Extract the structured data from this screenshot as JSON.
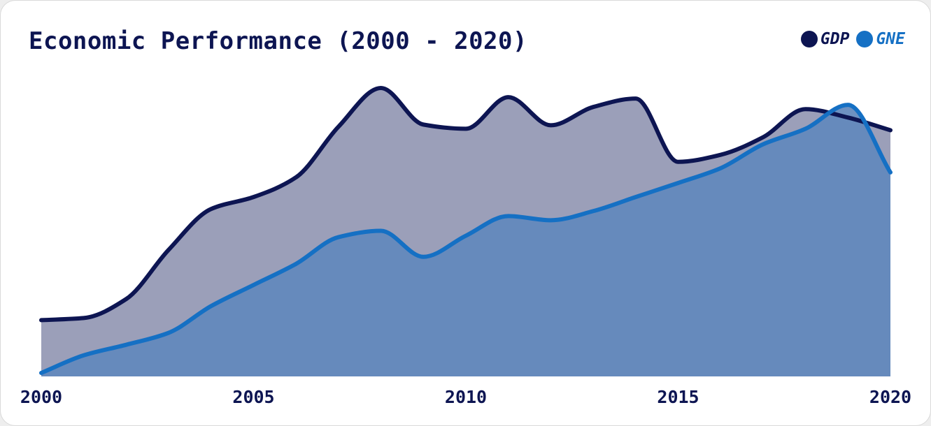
{
  "chart_data": {
    "type": "area",
    "title": "Economic Performance (2000 - 2020)",
    "x": [
      2000,
      2001,
      2002,
      2003,
      2004,
      2005,
      2006,
      2007,
      2008,
      2009,
      2010,
      2011,
      2012,
      2013,
      2014,
      2015,
      2016,
      2017,
      2018,
      2019,
      2020
    ],
    "x_ticks": [
      "2000",
      "2005",
      "2010",
      "2015",
      "2020"
    ],
    "ylim": [
      0,
      410
    ],
    "series": [
      {
        "name": "GDP",
        "color": "#0d1552",
        "fill": "#9b9fb9",
        "values": [
          80,
          83,
          110,
          180,
          238,
          255,
          283,
          355,
          410,
          358,
          352,
          397,
          357,
          383,
          395,
          305,
          315,
          340,
          380,
          368,
          350
        ]
      },
      {
        "name": "GNE",
        "color": "#1570c4",
        "fill": "#6288bc",
        "values": [
          5,
          30,
          45,
          62,
          100,
          130,
          160,
          198,
          207,
          170,
          200,
          228,
          222,
          235,
          255,
          275,
          296,
          330,
          352,
          386,
          290
        ]
      }
    ],
    "grid": false,
    "legend_position": "top-right"
  }
}
